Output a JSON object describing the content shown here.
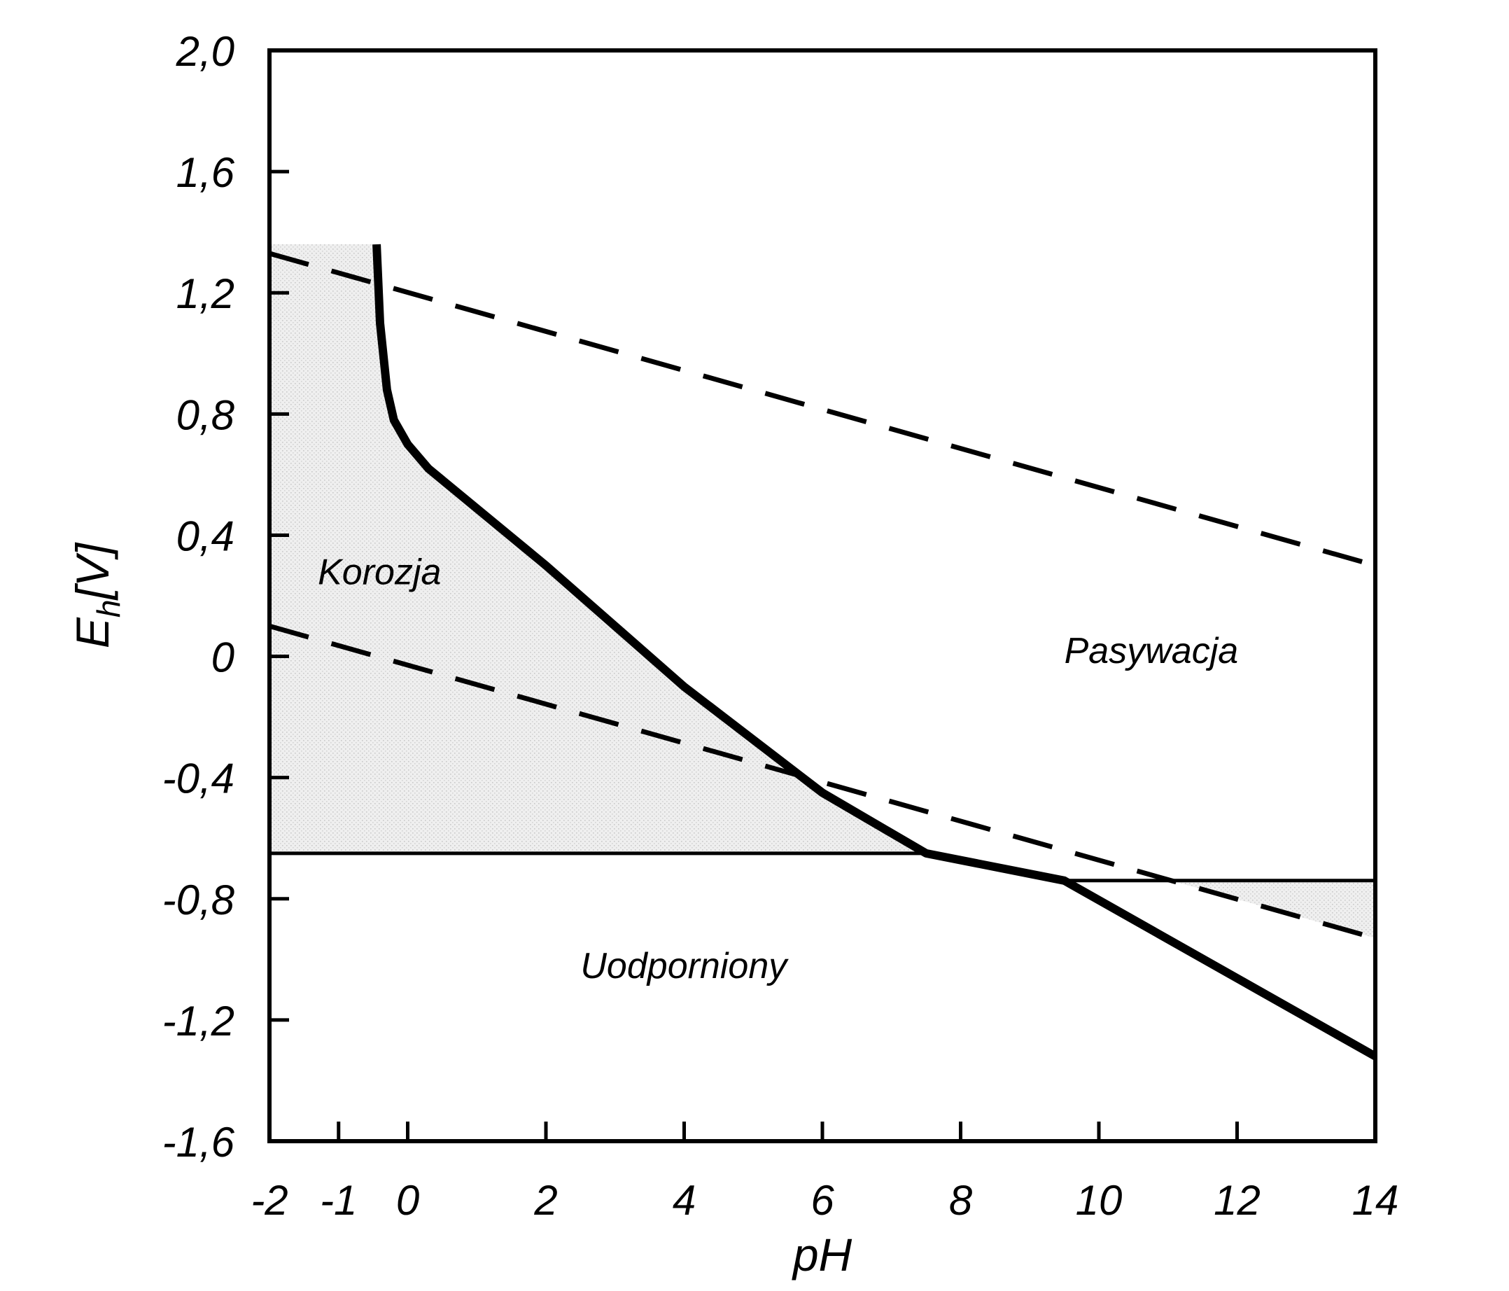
{
  "chart_data": {
    "type": "line",
    "xlabel": "pH",
    "ylabel": {
      "main": "E",
      "sub": "h",
      "unit": "[V]"
    },
    "xlim": [
      -2,
      14
    ],
    "ylim": [
      -1.6,
      2.0
    ],
    "x_ticks": [
      {
        "value": -2,
        "label": "-2"
      },
      {
        "value": -1,
        "label": "-1"
      },
      {
        "value": 0,
        "label": "0"
      },
      {
        "value": 2,
        "label": "2"
      },
      {
        "value": 4,
        "label": "4"
      },
      {
        "value": 6,
        "label": "6"
      },
      {
        "value": 8,
        "label": "8"
      },
      {
        "value": 10,
        "label": "10"
      },
      {
        "value": 12,
        "label": "12"
      },
      {
        "value": 14,
        "label": "14"
      }
    ],
    "y_ticks": [
      {
        "value": 2.0,
        "label": "2,0"
      },
      {
        "value": 1.6,
        "label": "1,6"
      },
      {
        "value": 1.2,
        "label": "1,2"
      },
      {
        "value": 0.8,
        "label": "0,8"
      },
      {
        "value": 0.4,
        "label": "0,4"
      },
      {
        "value": 0.0,
        "label": "0"
      },
      {
        "value": -0.4,
        "label": "-0,4"
      },
      {
        "value": -0.8,
        "label": "-0,8"
      },
      {
        "value": -1.2,
        "label": "-1,2"
      },
      {
        "value": -1.6,
        "label": "-1,6"
      }
    ],
    "series": [
      {
        "style": "thick-solid",
        "x": [
          -0.45,
          -0.4,
          -0.3,
          -0.2,
          0,
          0.3,
          2,
          4,
          6,
          7.5,
          9.5,
          14
        ],
        "y": [
          1.36,
          1.1,
          0.88,
          0.78,
          0.7,
          0.62,
          0.3,
          -0.1,
          -0.45,
          -0.65,
          -0.74,
          -1.32
        ]
      },
      {
        "style": "thin-solid",
        "x": [
          -2,
          7.5
        ],
        "y": [
          -0.65,
          -0.65
        ]
      },
      {
        "style": "thin-solid",
        "x": [
          9.5,
          14
        ],
        "y": [
          -0.74,
          -0.74
        ]
      },
      {
        "style": "dashed",
        "x": [
          -2,
          14
        ],
        "y": [
          1.33,
          0.3
        ]
      },
      {
        "style": "dashed",
        "x": [
          -2,
          14
        ],
        "y": [
          0.1,
          -0.93
        ]
      }
    ],
    "regions": [
      {
        "name": "Korozja",
        "shaded": true,
        "label_at": {
          "x": -1.3,
          "y": 0.28
        }
      },
      {
        "name": "Pasywacja",
        "shaded": false,
        "label_at": {
          "x": 9.5,
          "y": 0.02
        }
      },
      {
        "name": "Uodporniony",
        "shaded": false,
        "label_at": {
          "x": 2.5,
          "y": -1.02
        }
      }
    ],
    "grid": false,
    "legend": "none"
  }
}
